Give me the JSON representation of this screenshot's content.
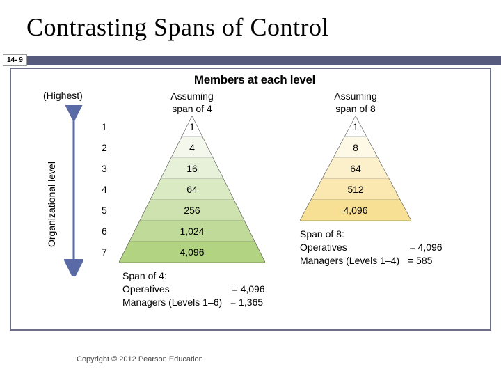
{
  "title": "Contrasting Spans of Control",
  "slide_number": "14- 9",
  "bar_color": "#565b7e",
  "border_color": "#6b6f8a",
  "copyright": "Copyright © 2012 Pearson Education",
  "diagram": {
    "header": "Members at each level",
    "highest_label": "(Highest)",
    "ylabel": "Organizational level",
    "arrow_color": "#5a6aa6",
    "levels": [
      "1",
      "2",
      "3",
      "4",
      "5",
      "6",
      "7"
    ],
    "span4": {
      "header": "Assuming\nspan of 4",
      "values": [
        "1",
        "4",
        "16",
        "64",
        "256",
        "1,024",
        "4,096"
      ],
      "colors": [
        "#ffffff",
        "#f4f8ec",
        "#e7f0d8",
        "#daebc3",
        "#cde2ae",
        "#c0db99",
        "#b1d382"
      ],
      "summary_title": "Span of 4:",
      "summary_op": "Operatives",
      "summary_op_val": "= 4,096",
      "summary_mgr": "Managers (Levels 1–6)",
      "summary_mgr_val": "= 1,365"
    },
    "span8": {
      "header": "Assuming\nspan of 8",
      "values": [
        "1",
        "8",
        "64",
        "512",
        "4,096"
      ],
      "colors": [
        "#ffffff",
        "#fef8e6",
        "#fcf0cb",
        "#fae8b0",
        "#f7df93"
      ],
      "summary_title": "Span of 8:",
      "summary_op": "Operatives",
      "summary_op_val": "= 4,096",
      "summary_mgr": "Managers (Levels 1–4)",
      "summary_mgr_val": "= 585"
    }
  }
}
